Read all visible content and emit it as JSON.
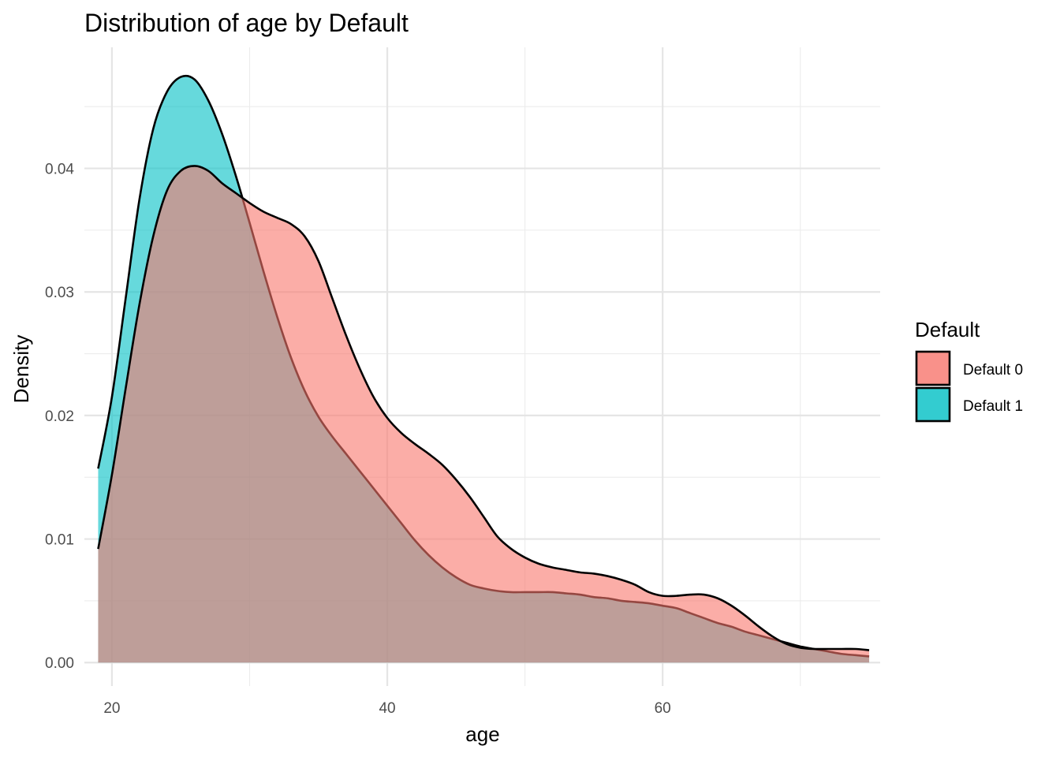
{
  "chart_data": {
    "type": "area",
    "title": "Distribution of age by Default",
    "xlabel": "age",
    "ylabel": "Density",
    "xlim": [
      18,
      75.8
    ],
    "ylim": [
      -0.0019,
      0.0498
    ],
    "x_ticks": [
      20,
      40,
      60
    ],
    "x_tick_labels": [
      "20",
      "40",
      "60"
    ],
    "y_ticks": [
      0.0,
      0.01,
      0.02,
      0.03,
      0.04
    ],
    "y_tick_labels": [
      "0.00",
      "0.01",
      "0.02",
      "0.03",
      "0.04"
    ],
    "grid": true,
    "legend": {
      "title": "Default",
      "position": "right",
      "entries": [
        "Default 0",
        "Default 1"
      ]
    },
    "colors": {
      "Default 0": "#F8766D",
      "Default 1": "#00BFC4"
    },
    "fill_opacity": 0.6,
    "series": [
      {
        "name": "Default 0",
        "x": [
          19,
          20,
          21,
          22,
          23,
          24,
          25,
          26,
          27,
          28,
          29,
          30,
          31,
          32,
          33,
          34,
          35,
          36,
          37,
          38,
          39,
          40,
          41,
          42,
          43,
          44,
          45,
          46,
          47,
          48,
          49,
          50,
          51,
          52,
          53,
          54,
          55,
          56,
          57,
          58,
          59,
          60,
          61,
          62,
          63,
          64,
          65,
          66,
          67,
          68,
          69,
          70,
          71,
          72,
          73,
          74,
          75
        ],
        "y": [
          0.0092,
          0.0152,
          0.0222,
          0.029,
          0.0345,
          0.0382,
          0.0398,
          0.0402,
          0.0398,
          0.0388,
          0.038,
          0.0372,
          0.0365,
          0.036,
          0.0355,
          0.0345,
          0.0325,
          0.0295,
          0.0265,
          0.0238,
          0.0215,
          0.0198,
          0.0186,
          0.0177,
          0.0169,
          0.016,
          0.0148,
          0.0134,
          0.0118,
          0.0102,
          0.0092,
          0.0085,
          0.008,
          0.0077,
          0.0075,
          0.0073,
          0.0072,
          0.007,
          0.0067,
          0.0063,
          0.0057,
          0.0054,
          0.0054,
          0.0055,
          0.0055,
          0.0052,
          0.0046,
          0.0038,
          0.0029,
          0.0021,
          0.0015,
          0.0012,
          0.0011,
          0.0011,
          0.0011,
          0.0011,
          0.001
        ]
      },
      {
        "name": "Default 1",
        "x": [
          19,
          20,
          21,
          22,
          23,
          24,
          25,
          26,
          27,
          28,
          29,
          30,
          31,
          32,
          33,
          34,
          35,
          36,
          37,
          38,
          39,
          40,
          41,
          42,
          43,
          44,
          45,
          46,
          47,
          48,
          49,
          50,
          51,
          52,
          53,
          54,
          55,
          56,
          57,
          58,
          59,
          60,
          61,
          62,
          63,
          64,
          65,
          66,
          67,
          68,
          69,
          70,
          71,
          72,
          73,
          74,
          75
        ],
        "y": [
          0.0157,
          0.0215,
          0.0295,
          0.0375,
          0.0432,
          0.0462,
          0.0474,
          0.0472,
          0.0455,
          0.0428,
          0.0394,
          0.0356,
          0.0317,
          0.028,
          0.0247,
          0.022,
          0.0199,
          0.0183,
          0.0169,
          0.0155,
          0.0141,
          0.0127,
          0.0113,
          0.0099,
          0.0087,
          0.0077,
          0.0069,
          0.0063,
          0.006,
          0.0058,
          0.0057,
          0.0057,
          0.0057,
          0.0057,
          0.0056,
          0.0055,
          0.0053,
          0.0052,
          0.005,
          0.0049,
          0.0048,
          0.0046,
          0.0044,
          0.004,
          0.0036,
          0.0032,
          0.0029,
          0.0025,
          0.0022,
          0.0019,
          0.0016,
          0.0013,
          0.0011,
          0.0009,
          0.0007,
          0.0006,
          0.0005
        ]
      }
    ]
  }
}
